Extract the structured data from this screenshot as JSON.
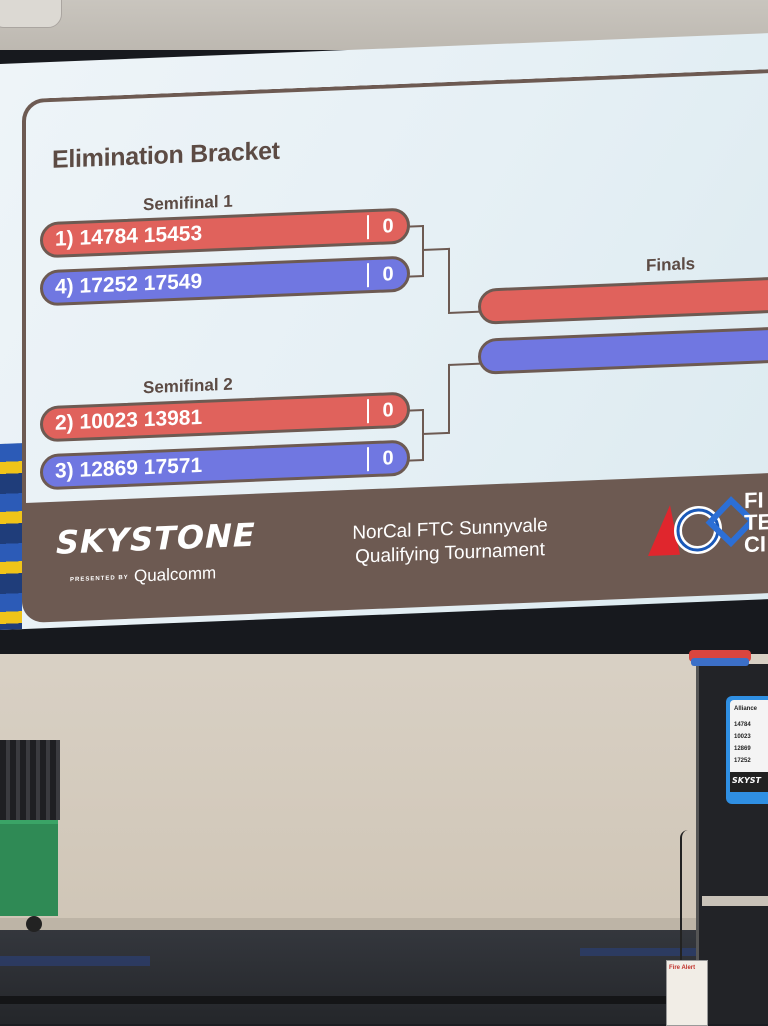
{
  "bracket": {
    "title": "Elimination Bracket",
    "semifinal1": {
      "label": "Semifinal 1",
      "red": {
        "seed": "1)",
        "teams": "14784 15453",
        "score": "0"
      },
      "blue": {
        "seed": "4)",
        "teams": "17252 17549",
        "score": "0"
      }
    },
    "semifinal2": {
      "label": "Semifinal 2",
      "red": {
        "seed": "2)",
        "teams": "10023 13981",
        "score": "0"
      },
      "blue": {
        "seed": "3)",
        "teams": "12869 17571",
        "score": "0"
      }
    },
    "finals": {
      "label": "Finals"
    }
  },
  "footer": {
    "game_logo": "SKYSTONE",
    "presented_by": "PRESENTED BY",
    "sponsor": "Qualcomm",
    "event_line1": "NorCal FTC Sunnyvale",
    "event_line2": "Qualifying Tournament",
    "first_text": "FI\nTE\nCI"
  },
  "monitor": {
    "header": "Alliance",
    "rows": [
      "14784",
      "10023",
      "12869",
      "17252"
    ],
    "logo": "SKYST"
  },
  "room": {
    "fire_alarm_label": "Fire Alert"
  },
  "colors": {
    "red_alliance": "#e0625c",
    "blue_alliance": "#7077e1",
    "frame_brown": "#6d5a52"
  }
}
